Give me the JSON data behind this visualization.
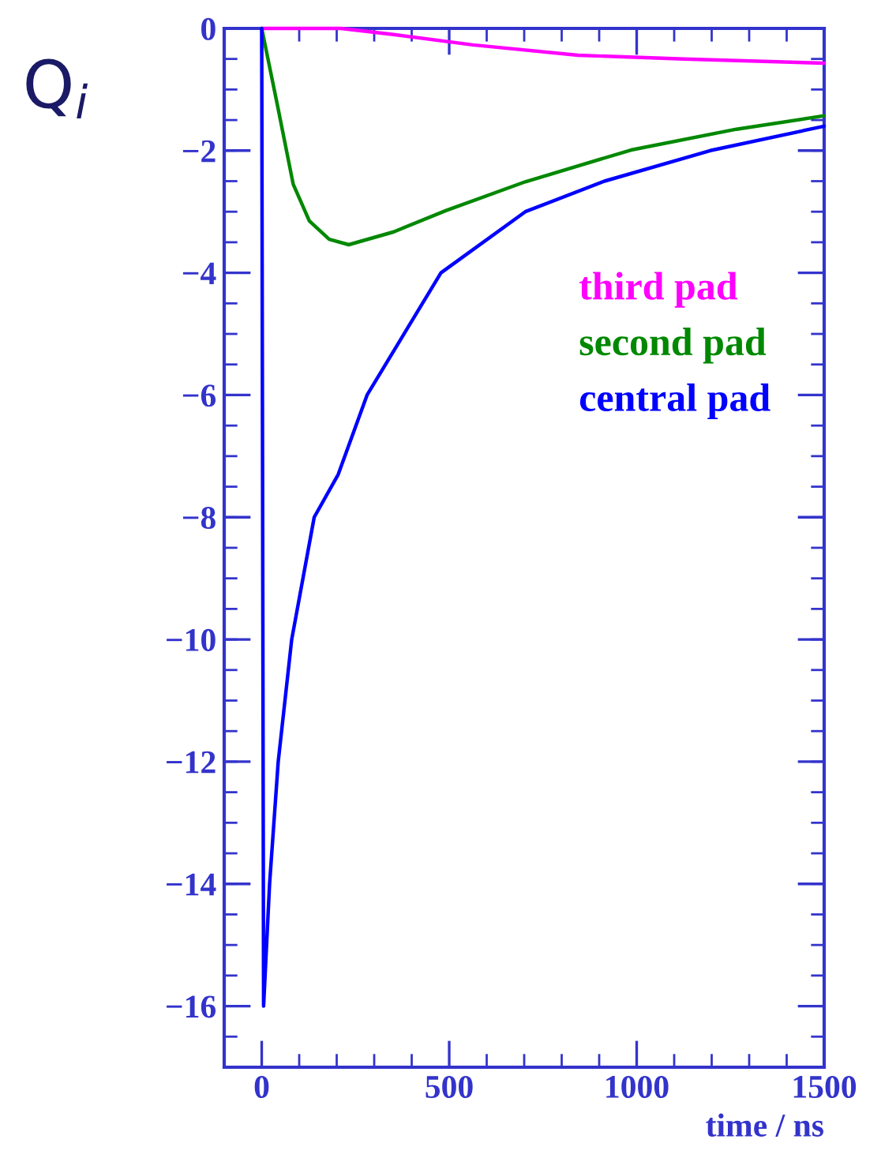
{
  "chart_data": {
    "type": "line",
    "ylabel": "Q$_{i}$",
    "xlabel": "time / ns",
    "xlim": [
      -100,
      1500
    ],
    "xticks": [
      0,
      500,
      1000,
      1500
    ],
    "ylim": [
      -17,
      0
    ],
    "yticks": [
      -16,
      -14,
      -12,
      -10,
      -8,
      -6,
      -4,
      -2,
      0
    ],
    "grid": false,
    "legend": "right",
    "marker": "none",
    "line_style": "solid",
    "series": [
      {
        "name": "third pad",
        "color": "#ff00ff",
        "x": [
          0,
          100,
          211,
          352,
          563,
          844,
          1126,
          1500
        ],
        "values": [
          0,
          0,
          0,
          -0.1,
          -0.27,
          -0.44,
          -0.5,
          -0.57
        ]
      },
      {
        "name": "second pad",
        "color": "#008800",
        "x": [
          0,
          20,
          42,
          84,
          127,
          180,
          232,
          352,
          492,
          703,
          985,
          1266,
          1500
        ],
        "values": [
          0,
          -0.6,
          -1.26,
          -2.55,
          -3.15,
          -3.45,
          -3.54,
          -3.33,
          -2.98,
          -2.51,
          -1.99,
          -1.65,
          -1.43
        ]
      },
      {
        "name": "central pad",
        "color": "#0000ff",
        "x": [
          0,
          5,
          21,
          44,
          80,
          140,
          204,
          281,
          478,
          703,
          914,
          1196,
          1500
        ],
        "values": [
          0,
          -16,
          -14,
          -12,
          -10,
          -8,
          -7.3,
          -6,
          -4,
          -3,
          -2.5,
          -2,
          -1.6
        ]
      }
    ]
  }
}
